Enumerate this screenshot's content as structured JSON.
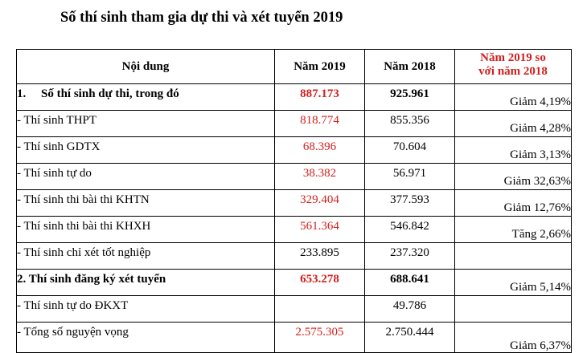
{
  "title": "Số thí sinh tham gia dự thi và xét tuyển 2019",
  "headers": {
    "content": "Nội dung",
    "y2019": "Năm 2019",
    "y2018": "Năm 2018",
    "compare_line1": "Năm 2019 so",
    "compare_line2": "với năm 2018"
  },
  "rows": [
    {
      "label": "1.     Số thí sinh dự thi, trong đó",
      "y2019": "887.173",
      "y2018": "925.961",
      "change": "Giảm 4,19%"
    },
    {
      "label": "- Thí sinh THPT",
      "y2019": "818.774",
      "y2018": "855.356",
      "change": "Giảm 4,28%"
    },
    {
      "label": "- Thí sinh GDTX",
      "y2019": "68.396",
      "y2018": "70.604",
      "change": "Giảm 3,13%"
    },
    {
      "label": "- Thí sinh tự do",
      "y2019": "38.382",
      "y2018": "56.971",
      "change": "Giảm 32,63%"
    },
    {
      "label": "- Thí sinh thi bài thi KHTN",
      "y2019": "329.404",
      "y2018": "377.593",
      "change": "Giảm 12,76%"
    },
    {
      "label": "- Thí sinh thi bài thi KHXH",
      "y2019": "561.364",
      "y2018": "546.842",
      "change": "Tăng 2,66%"
    },
    {
      "label": "- Thí sinh chỉ xét tốt nghiệp",
      "y2019": "233.895",
      "y2018": "237.320",
      "change": ""
    },
    {
      "label": "2. Thí sinh đăng ký xét tuyển",
      "y2019": "653.278",
      "y2018": "688.641",
      "change": "Giảm 5,14%"
    },
    {
      "label": "- Thí sinh tự do ĐKXT",
      "y2019": "",
      "y2018": "49.786",
      "change": ""
    },
    {
      "label": "- Tổng số nguyện vọng",
      "y2019": "2.575.305",
      "y2018": "2.750.444",
      "change": "Giảm 6,37%"
    }
  ],
  "colors": {
    "highlight": "#d0201e",
    "text": "#000000",
    "border": "#000000"
  }
}
